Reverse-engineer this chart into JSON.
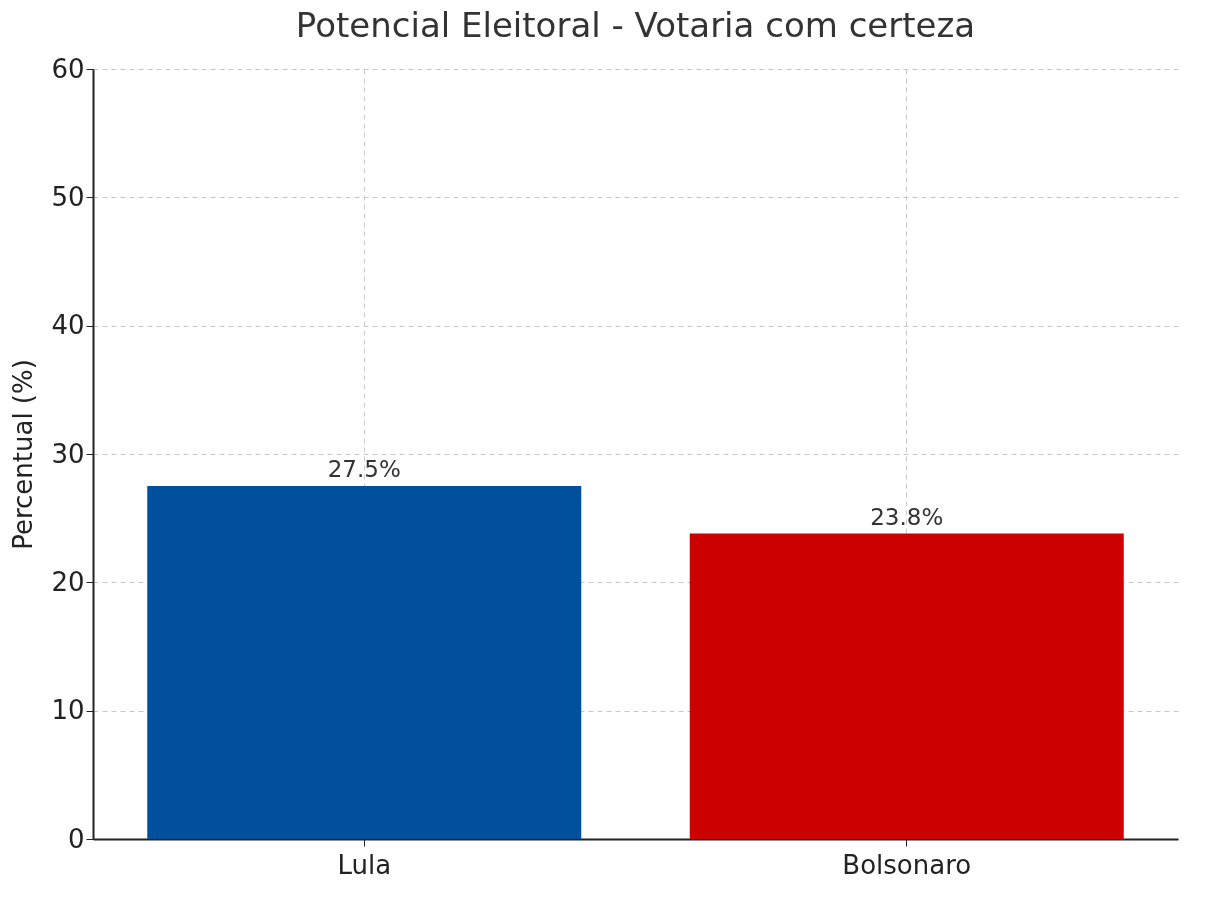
{
  "chart_data": {
    "type": "bar",
    "title": "Potencial Eleitoral - Votaria com certeza",
    "ylabel": "Percentual (%)",
    "categories": [
      "Lula",
      "Bolsonaro"
    ],
    "values": [
      27.5,
      23.8
    ],
    "colors": [
      "#00509d",
      "#cc0000"
    ],
    "value_labels": [
      "27.5%",
      "23.8%"
    ],
    "ylim": [
      0,
      60
    ],
    "yticks": [
      0,
      10,
      20,
      30,
      40,
      50,
      60
    ],
    "grid": true
  }
}
